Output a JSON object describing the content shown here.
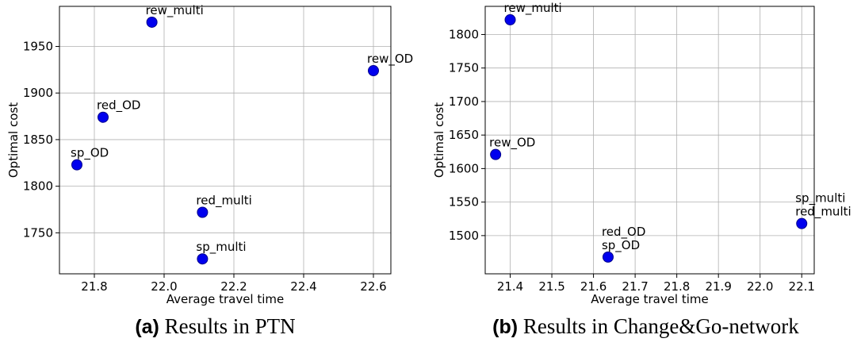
{
  "chart_data": [
    {
      "type": "scatter",
      "caption_label": "(a)",
      "caption_text": "Results in PTN",
      "xlabel": "Average travel time",
      "ylabel": "Optimal cost",
      "xlim": [
        21.7,
        22.65
      ],
      "ylim": [
        1706,
        1993
      ],
      "xticks": [
        21.8,
        22.0,
        22.2,
        22.4,
        22.6
      ],
      "xtick_labels": [
        "21.8",
        "22.0",
        "22.2",
        "22.4",
        "22.6"
      ],
      "yticks": [
        1750,
        1800,
        1850,
        1900,
        1950
      ],
      "ytick_labels": [
        "1750",
        "1800",
        "1850",
        "1900",
        "1950"
      ],
      "grid": true,
      "marker_color": "#0000ee",
      "marker_edge_color": "#00008b",
      "points": [
        {
          "label": "rew_multi",
          "x": 21.965,
          "y": 1976
        },
        {
          "label": "rew_OD",
          "x": 22.6,
          "y": 1924
        },
        {
          "label": "red_OD",
          "x": 21.825,
          "y": 1874
        },
        {
          "label": "sp_OD",
          "x": 21.75,
          "y": 1823
        },
        {
          "label": "red_multi",
          "x": 22.11,
          "y": 1772
        },
        {
          "label": "sp_multi",
          "x": 22.11,
          "y": 1722
        }
      ]
    },
    {
      "type": "scatter",
      "caption_label": "(b)",
      "caption_text": "Results in Change&Go-network",
      "xlabel": "Average travel time",
      "ylabel": "Optimal cost",
      "xlim": [
        21.34,
        22.13
      ],
      "ylim": [
        1443,
        1842
      ],
      "xticks": [
        21.4,
        21.5,
        21.6,
        21.7,
        21.8,
        21.9,
        22.0,
        22.1
      ],
      "xtick_labels": [
        "21.4",
        "21.5",
        "21.6",
        "21.7",
        "21.8",
        "21.9",
        "22.0",
        "22.1"
      ],
      "yticks": [
        1500,
        1550,
        1600,
        1650,
        1700,
        1750,
        1800
      ],
      "ytick_labels": [
        "1500",
        "1550",
        "1600",
        "1650",
        "1700",
        "1750",
        "1800"
      ],
      "grid": true,
      "marker_color": "#0000ee",
      "marker_edge_color": "#00008b",
      "points": [
        {
          "label": "rew_multi",
          "x": 21.4,
          "y": 1822
        },
        {
          "label": "rew_OD",
          "x": 21.365,
          "y": 1621
        },
        {
          "label": "sp_multi\nred_multi",
          "x": 22.1,
          "y": 1518
        },
        {
          "label": "red_OD\nsp_OD",
          "x": 21.635,
          "y": 1468
        }
      ]
    }
  ]
}
